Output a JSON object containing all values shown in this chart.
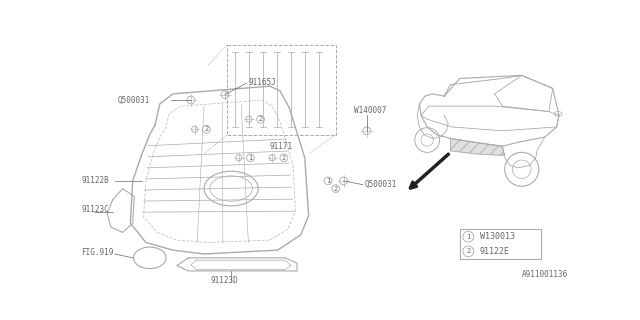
{
  "bg_color": "#ffffff",
  "line_color": "#aaaaaa",
  "text_color": "#666666",
  "doc_number": "A911001136",
  "legend_items": [
    {
      "num": "1",
      "code": "W130013"
    },
    {
      "num": "2",
      "code": "91122E"
    }
  ],
  "fig_w": 640,
  "fig_h": 320
}
